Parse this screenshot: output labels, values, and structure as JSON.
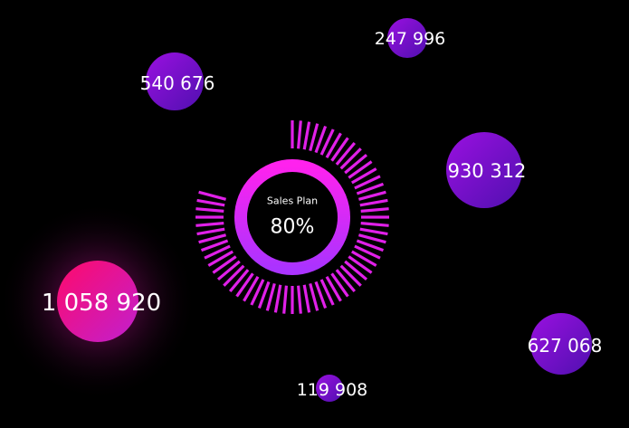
{
  "chart_data": [
    {
      "type": "gauge",
      "title": "Sales Plan",
      "value": 80,
      "value_label": "80%",
      "max": 100,
      "colors": {
        "ring_start": "#ff22ee",
        "ring_end": "#aa33ff",
        "ticks": "#e020e8"
      }
    },
    {
      "type": "bubble",
      "points": [
        {
          "label": "1 058 920",
          "value": 1058920,
          "highlight": true
        },
        {
          "label": "930 312",
          "value": 930312
        },
        {
          "label": "627 068",
          "value": 627068
        },
        {
          "label": "540 676",
          "value": 540676
        },
        {
          "label": "247 996",
          "value": 247996
        },
        {
          "label": "119 908",
          "value": 119908
        }
      ],
      "colors": {
        "bubble_start": "#9a10e0",
        "bubble_end": "#5010b0",
        "highlight_start": "#ff0a6a",
        "highlight_end": "#c020d0"
      }
    }
  ]
}
